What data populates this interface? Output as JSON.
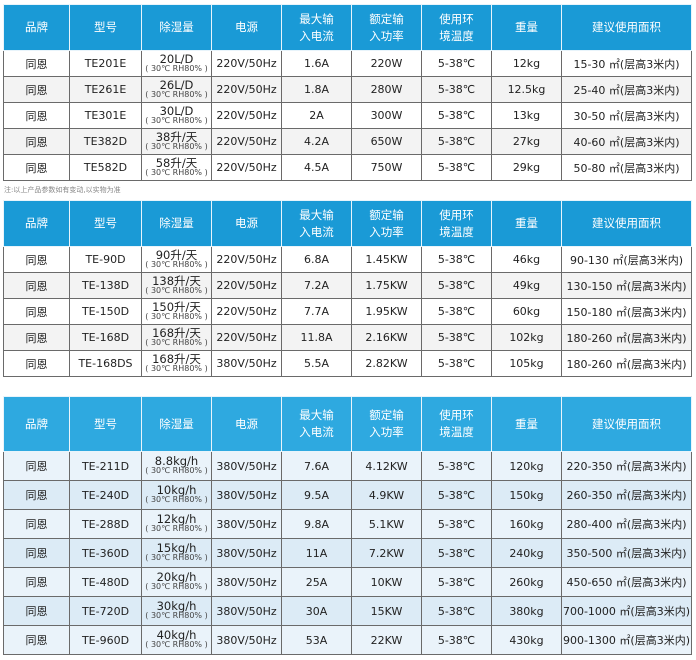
{
  "headers": [
    "品牌",
    "型号",
    "除湿量",
    "电源",
    "最大输\n入电流",
    "额定输\n入功率",
    "使用环\n境温度",
    "重量",
    "建议使用面积"
  ],
  "note": "注:以上产品参数如有变动,以实物为准",
  "condition": "( 30℃ RH80% )",
  "tables": [
    {
      "rows": [
        {
          "brand": "同恩",
          "model": "TE201E",
          "dehum": "20L/D",
          "power": "220V/50Hz",
          "current": "1.6A",
          "input_power": "220W",
          "temp": "5-38℃",
          "weight": "12kg",
          "area": "15-30 ㎡(层高3米内)"
        },
        {
          "brand": "同恩",
          "model": "TE261E",
          "dehum": "26L/D",
          "power": "220V/50Hz",
          "current": "1.8A",
          "input_power": "280W",
          "temp": "5-38℃",
          "weight": "12.5kg",
          "area": "25-40 ㎡(层高3米内)"
        },
        {
          "brand": "同恩",
          "model": "TE301E",
          "dehum": "30L/D",
          "power": "220V/50Hz",
          "current": "2A",
          "input_power": "300W",
          "temp": "5-38℃",
          "weight": "13kg",
          "area": "30-50 ㎡(层高3米内)"
        },
        {
          "brand": "同恩",
          "model": "TE382D",
          "dehum": "38升/天",
          "power": "220V/50Hz",
          "current": "4.2A",
          "input_power": "650W",
          "temp": "5-38℃",
          "weight": "27kg",
          "area": "40-60 ㎡(层高3米内)"
        },
        {
          "brand": "同恩",
          "model": "TE582D",
          "dehum": "58升/天",
          "power": "220V/50Hz",
          "current": "4.5A",
          "input_power": "750W",
          "temp": "5-38℃",
          "weight": "29kg",
          "area": "50-80 ㎡(层高3米内)"
        }
      ]
    },
    {
      "rows": [
        {
          "brand": "同恩",
          "model": "TE-90D",
          "dehum": "90升/天",
          "power": "220V/50Hz",
          "current": "6.8A",
          "input_power": "1.45KW",
          "temp": "5-38℃",
          "weight": "46kg",
          "area": "90-130 ㎡(层高3米内)"
        },
        {
          "brand": "同恩",
          "model": "TE-138D",
          "dehum": "138升/天",
          "power": "220V/50Hz",
          "current": "7.2A",
          "input_power": "1.75KW",
          "temp": "5-38℃",
          "weight": "49kg",
          "area": "130-150 ㎡(层高3米内)"
        },
        {
          "brand": "同恩",
          "model": "TE-150D",
          "dehum": "150升/天",
          "power": "220V/50Hz",
          "current": "7.7A",
          "input_power": "1.95KW",
          "temp": "5-38℃",
          "weight": "60kg",
          "area": "150-180 ㎡(层高3米内)"
        },
        {
          "brand": "同恩",
          "model": "TE-168D",
          "dehum": "168升/天",
          "power": "220V/50Hz",
          "current": "11.8A",
          "input_power": "2.16KW",
          "temp": "5-38℃",
          "weight": "102kg",
          "area": "180-260 ㎡(层高3米内)"
        },
        {
          "brand": "同恩",
          "model": "TE-168DS",
          "dehum": "168升/天",
          "power": "380V/50Hz",
          "current": "5.5A",
          "input_power": "2.82KW",
          "temp": "5-38℃",
          "weight": "105kg",
          "area": "180-260 ㎡(层高3米内)"
        }
      ]
    },
    {
      "rows": [
        {
          "brand": "同恩",
          "model": "TE-211D",
          "dehum": "8.8kg/h",
          "power": "380V/50Hz",
          "current": "7.6A",
          "input_power": "4.12KW",
          "temp": "5-38℃",
          "weight": "120kg",
          "area": "220-350 ㎡(层高3米内)"
        },
        {
          "brand": "同恩",
          "model": "TE-240D",
          "dehum": "10kg/h",
          "power": "380V/50Hz",
          "current": "9.5A",
          "input_power": "4.9KW",
          "temp": "5-38℃",
          "weight": "150kg",
          "area": "260-350 ㎡(层高3米内)"
        },
        {
          "brand": "同恩",
          "model": "TE-288D",
          "dehum": "12kg/h",
          "power": "380V/50Hz",
          "current": "9.8A",
          "input_power": "5.1KW",
          "temp": "5-38℃",
          "weight": "160kg",
          "area": "280-400 ㎡(层高3米内)"
        },
        {
          "brand": "同恩",
          "model": "TE-360D",
          "dehum": "15kg/h",
          "power": "380V/50Hz",
          "current": "11A",
          "input_power": "7.2KW",
          "temp": "5-38℃",
          "weight": "240kg",
          "area": "350-500 ㎡(层高3米内)"
        },
        {
          "brand": "同恩",
          "model": "TE-480D",
          "dehum": "20kg/h",
          "power": "380V/50Hz",
          "current": "25A",
          "input_power": "10KW",
          "temp": "5-38℃",
          "weight": "260kg",
          "area": "450-650 ㎡(层高3米内)"
        },
        {
          "brand": "同恩",
          "model": "TE-720D",
          "dehum": "30kg/h",
          "power": "380V/50Hz",
          "current": "30A",
          "input_power": "15KW",
          "temp": "5-38℃",
          "weight": "380kg",
          "area": "700-1000 ㎡(层高3米内)"
        },
        {
          "brand": "同恩",
          "model": "TE-960D",
          "dehum": "40kg/h",
          "power": "380V/50Hz",
          "current": "53A",
          "input_power": "22KW",
          "temp": "5-38℃",
          "weight": "430kg",
          "area": "900-1300 ㎡(层高3米内)"
        }
      ]
    }
  ]
}
